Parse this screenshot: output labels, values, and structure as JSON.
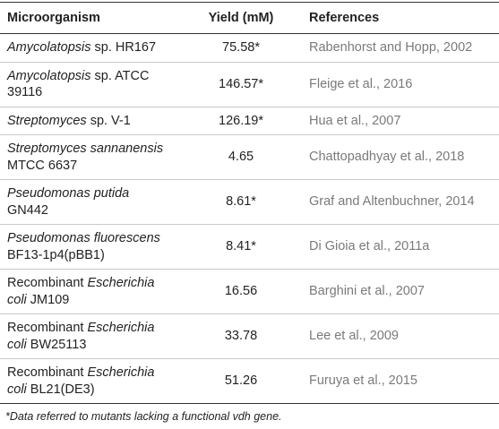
{
  "table": {
    "header": [
      "Microorganism",
      "Yield (mM)",
      "References"
    ],
    "rows": [
      {
        "prefix": null,
        "italic": "Amycolatopsis",
        "rest": "sp. HR167",
        "yield": "75.58*",
        "reference": "Rabenhorst and Hopp, 2002"
      },
      {
        "prefix": null,
        "italic": "Amycolatopsis",
        "rest": "sp. ATCC 39116",
        "yield": "146.57*",
        "reference": "Fleige et al., 2016"
      },
      {
        "prefix": null,
        "italic": "Streptomyces",
        "rest": "sp. V-1",
        "yield": "126.19*",
        "reference": "Hua et al., 2007"
      },
      {
        "prefix": null,
        "italic": "Streptomyces sannanensis",
        "rest": "MTCC 6637",
        "yield": "4.65",
        "reference": "Chattopadhyay et al., 2018"
      },
      {
        "prefix": null,
        "italic": "Pseudomonas putida",
        "rest": "GN442",
        "yield": "8.61*",
        "reference": "Graf and Altenbuchner, 2014"
      },
      {
        "prefix": null,
        "italic": "Pseudomonas fluorescens",
        "rest": "BF13-1p4(pBB1)",
        "yield": "8.41*",
        "reference": "Di Gioia et al., 2011a"
      },
      {
        "prefix": "Recombinant",
        "italic": "Escherichia coli",
        "rest": "JM109",
        "yield": "16.56",
        "reference": "Barghini et al., 2007"
      },
      {
        "prefix": "Recombinant",
        "italic": "Escherichia coli",
        "rest": "BW25113",
        "yield": "33.78",
        "reference": "Lee et al., 2009"
      },
      {
        "prefix": "Recombinant",
        "italic": "Escherichia coli",
        "rest": "BL21(DE3)",
        "yield": "51.26",
        "reference": "Furuya et al., 2015"
      }
    ],
    "footnote": "*Data referred to mutants lacking a functional vdh gene."
  }
}
